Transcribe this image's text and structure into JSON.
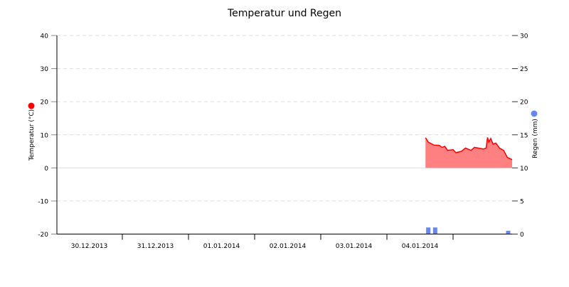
{
  "chart_data": {
    "type": "area",
    "title": "Temperatur und Regen",
    "x_axis": {
      "type": "datetime",
      "range": [
        "2013-12-30 00:00",
        "2014-01-05 21:25"
      ],
      "tick_labels": [
        "30.12.2013",
        "31.12.2013",
        "01.01.2014",
        "02.01.2014",
        "03.01.2014",
        "04.01.2014"
      ]
    },
    "y_left": {
      "label": "Temperatur (°C)",
      "range": [
        -20,
        40
      ],
      "ticks": [
        -20,
        -10,
        0,
        10,
        20,
        30,
        40
      ],
      "grid": true
    },
    "y_right": {
      "label": "Regen (mm)",
      "range": [
        0,
        30
      ],
      "ticks": [
        0,
        5,
        10,
        15,
        20,
        25,
        30
      ]
    },
    "colors": {
      "temperature_line": "#ff0000",
      "temperature_fill": "#ff8080",
      "rain": "#6688ee",
      "legend_temp": "#ff0000",
      "legend_rain": "#6688ee"
    },
    "series": [
      {
        "type": "area",
        "axis": "left",
        "x": [
          "2014-01-04 14:00",
          "2014-01-04 15:00",
          "2014-01-04 17:00",
          "2014-01-04 19:00",
          "2014-01-04 20:00",
          "2014-01-04 21:00",
          "2014-01-04 22:00",
          "2014-01-05 00:00",
          "2014-01-05 01:00",
          "2014-01-05 03:00",
          "2014-01-05 04:30",
          "2014-01-05 06:30",
          "2014-01-05 07:45",
          "2014-01-05 11:00",
          "2014-01-05 12:00",
          "2014-01-05 12:30",
          "2014-01-05 13:00",
          "2014-01-05 13:40",
          "2014-01-05 14:30",
          "2014-01-05 15:30",
          "2014-01-05 16:50",
          "2014-01-05 18:20",
          "2014-01-05 19:40",
          "2014-01-05 20:40",
          "2014-01-05 21:25"
        ],
        "y": [
          9.1,
          7.8,
          6.9,
          6.8,
          6.2,
          6.5,
          5.3,
          5.5,
          4.6,
          5.0,
          6.0,
          5.3,
          6.2,
          5.7,
          6.0,
          9.2,
          7.8,
          8.9,
          7.2,
          7.5,
          6.0,
          5.3,
          3.2,
          2.8,
          2.5
        ]
      },
      {
        "type": "bar",
        "axis": "right",
        "x": [
          "2014-01-04 15:00",
          "2014-01-04 17:30",
          "2014-01-05 20:00"
        ],
        "y": [
          1.0,
          1.0,
          0.5
        ]
      }
    ]
  }
}
